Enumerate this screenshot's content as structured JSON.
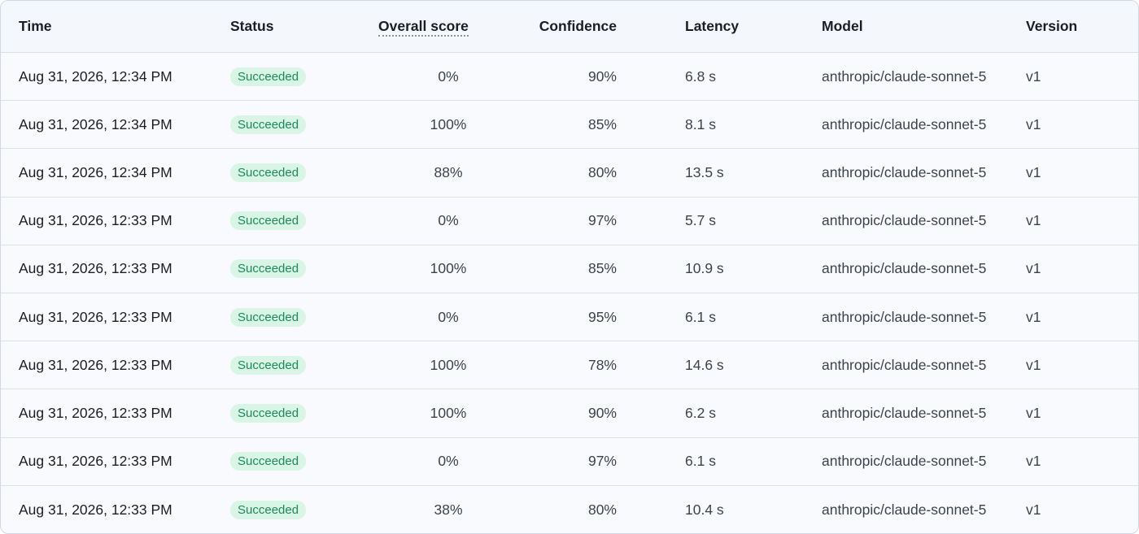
{
  "table": {
    "columns": [
      "Time",
      "Status",
      "Overall score",
      "Confidence",
      "Latency",
      "Model",
      "Version"
    ],
    "rows": [
      [
        "Aug 31, 2026, 12:34 PM",
        "Succeeded",
        "0%",
        "90%",
        "6.8 s",
        "anthropic/claude-sonnet-5",
        "v1"
      ],
      [
        "Aug 31, 2026, 12:34 PM",
        "Succeeded",
        "100%",
        "85%",
        "8.1 s",
        "anthropic/claude-sonnet-5",
        "v1"
      ],
      [
        "Aug 31, 2026, 12:34 PM",
        "Succeeded",
        "88%",
        "80%",
        "13.5 s",
        "anthropic/claude-sonnet-5",
        "v1"
      ],
      [
        "Aug 31, 2026, 12:33 PM",
        "Succeeded",
        "0%",
        "97%",
        "5.7 s",
        "anthropic/claude-sonnet-5",
        "v1"
      ],
      [
        "Aug 31, 2026, 12:33 PM",
        "Succeeded",
        "100%",
        "85%",
        "10.9 s",
        "anthropic/claude-sonnet-5",
        "v1"
      ],
      [
        "Aug 31, 2026, 12:33 PM",
        "Succeeded",
        "0%",
        "95%",
        "6.1 s",
        "anthropic/claude-sonnet-5",
        "v1"
      ],
      [
        "Aug 31, 2026, 12:33 PM",
        "Succeeded",
        "100%",
        "78%",
        "14.6 s",
        "anthropic/claude-sonnet-5",
        "v1"
      ],
      [
        "Aug 31, 2026, 12:33 PM",
        "Succeeded",
        "100%",
        "90%",
        "6.2 s",
        "anthropic/claude-sonnet-5",
        "v1"
      ],
      [
        "Aug 31, 2026, 12:33 PM",
        "Succeeded",
        "0%",
        "97%",
        "6.1 s",
        "anthropic/claude-sonnet-5",
        "v1"
      ],
      [
        "Aug 31, 2026, 12:33 PM",
        "Succeeded",
        "38%",
        "80%",
        "10.4 s",
        "anthropic/claude-sonnet-5",
        "v1"
      ]
    ]
  }
}
